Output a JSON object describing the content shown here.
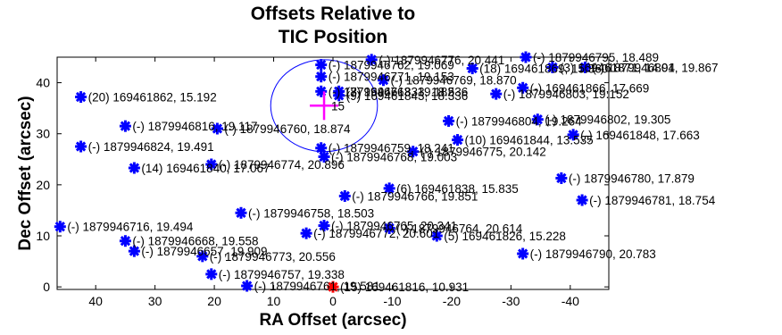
{
  "chart_data": {
    "type": "scatter",
    "title_lines": [
      "Offsets Relative to",
      "TIC Position"
    ],
    "xlabel": "RA Offset (arcsec)",
    "ylabel": "Dec Offset (arcsec)",
    "xlim": [
      46.5,
      -46.5
    ],
    "ylim": [
      -0.5,
      45
    ],
    "x_ticks": [
      40,
      30,
      20,
      10,
      0,
      -10,
      -20,
      -30,
      -40
    ],
    "x_tick_labels": [
      "40",
      "30",
      "20",
      "10",
      "0",
      "-10",
      "-20",
      "-30",
      "-40"
    ],
    "y_ticks": [
      0,
      10,
      20,
      30,
      40
    ],
    "y_tick_labels": [
      "0",
      "10",
      "20",
      "30",
      "40"
    ],
    "grid": false,
    "marker_color": "#0000ff",
    "target": {
      "x": 0,
      "y": 0,
      "color": "#ff0000",
      "label": "(15) 169461816, 10.931"
    },
    "tic_cross": {
      "x": 1.5,
      "y": 35.5,
      "color": "#ff00ff",
      "label": "15",
      "circle_radius": 9
    },
    "points": [
      {
        "x": 42.5,
        "y": 37.2,
        "label": "(20) 169461862, 15.192"
      },
      {
        "x": 35.0,
        "y": 31.5,
        "label": "(-) 1879946816, 19.117"
      },
      {
        "x": 42.5,
        "y": 27.5,
        "label": "(-) 1879946824, 19.491"
      },
      {
        "x": 33.5,
        "y": 23.3,
        "label": "(14) 169461840, 17.067"
      },
      {
        "x": 19.5,
        "y": 31.0,
        "label": "(-) 1879946760, 18.874"
      },
      {
        "x": 20.5,
        "y": 24.0,
        "label": "(-) 1879946774, 20.896"
      },
      {
        "x": 46.0,
        "y": 11.8,
        "label": "(-) 1879946716, 19.494"
      },
      {
        "x": 35.0,
        "y": 9.0,
        "label": "(-) 1879946668, 19.558"
      },
      {
        "x": 33.5,
        "y": 7.0,
        "label": "(-) 1879946657, 19.909"
      },
      {
        "x": 22.0,
        "y": 6.0,
        "label": "(-) 1879946773, 20.556"
      },
      {
        "x": 15.5,
        "y": 14.5,
        "label": "(-) 1879946758, 18.503"
      },
      {
        "x": 20.5,
        "y": 2.5,
        "label": "(-) 1879946757, 19.338"
      },
      {
        "x": 14.5,
        "y": 0.2,
        "label": "(-) 1879946761, 19.581"
      },
      {
        "x": 4.5,
        "y": 10.5,
        "label": "(-) 1879946772, 20.601"
      },
      {
        "x": 1.5,
        "y": 12.0,
        "label": "(-) 1879946765, 20.341"
      },
      {
        "x": -2.0,
        "y": 17.8,
        "label": "(-) 1879946766, 19.851"
      },
      {
        "x": -9.5,
        "y": 11.5,
        "label": "(-) 1879946764, 20.614"
      },
      {
        "x": -9.5,
        "y": 19.3,
        "label": "(6) 169461838, 15.835"
      },
      {
        "x": -17.5,
        "y": 10.0,
        "label": "(5) 169461826, 15.228"
      },
      {
        "x": 2.0,
        "y": 27.2,
        "label": "(-) 1879946759, 18.241"
      },
      {
        "x": 1.5,
        "y": 25.5,
        "label": "(-) 1879946768, 19.003"
      },
      {
        "x": -13.5,
        "y": 26.5,
        "label": "(-) 1879946775, 20.142"
      },
      {
        "x": -21.0,
        "y": 28.8,
        "label": "(10) 169461844, 13.535"
      },
      {
        "x": -19.5,
        "y": 32.5,
        "label": "(-) 1879946804, 19.264"
      },
      {
        "x": -34.5,
        "y": 32.8,
        "label": "(-) 1879946802, 19.305"
      },
      {
        "x": -40.5,
        "y": 29.8,
        "label": "(-) 169461848, 17.663"
      },
      {
        "x": -38.5,
        "y": 21.3,
        "label": "(-) 1879946780, 17.879"
      },
      {
        "x": -42.0,
        "y": 17.0,
        "label": "(-) 1879946781, 18.754"
      },
      {
        "x": -32.0,
        "y": 6.5,
        "label": "(-) 1879946790, 20.783"
      },
      {
        "x": 2.0,
        "y": 43.5,
        "label": "(-) 1879946762, 19.069"
      },
      {
        "x": -6.5,
        "y": 44.5,
        "label": "(-) 1879946776, 20.441"
      },
      {
        "x": 2.0,
        "y": 41.2,
        "label": "(-) 1879946771, 19.153"
      },
      {
        "x": -8.5,
        "y": 40.5,
        "label": "(-) 1879946769, 18.870"
      },
      {
        "x": 2.0,
        "y": 38.3,
        "label": "(-) 1879946763, 19.182"
      },
      {
        "x": -1.0,
        "y": 38.3,
        "label": "(7) 169461833, 18.536"
      },
      {
        "x": -1.0,
        "y": 37.5,
        "label": "(9) 169461843, 18.336"
      },
      {
        "x": -23.5,
        "y": 42.8,
        "label": "(18) 169461869, 15.360"
      },
      {
        "x": -27.5,
        "y": 37.8,
        "label": "(-) 1879946803, 19.152"
      },
      {
        "x": -32.0,
        "y": 39.0,
        "label": "(-) 169461866, 17.669"
      },
      {
        "x": -32.5,
        "y": 45.0,
        "label": "(-) 1879946795, 18.489"
      },
      {
        "x": -37.0,
        "y": 43.0,
        "label": "(3) 169461871, 14.94"
      },
      {
        "x": -42.5,
        "y": 43.0,
        "label": "(-) 1879946801, 19.867"
      }
    ]
  }
}
